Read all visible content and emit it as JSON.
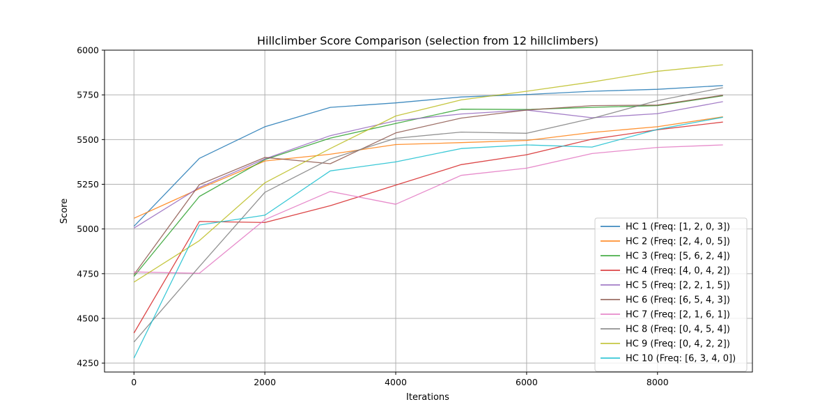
{
  "chart_data": {
    "type": "line",
    "title": "Hillclimber Score Comparison (selection from 12 hillclimbers)",
    "xlabel": "Iterations",
    "ylabel": "Score",
    "x": [
      0,
      1000,
      2000,
      3000,
      4000,
      5000,
      6000,
      7000,
      8000,
      9000
    ],
    "xlim": [
      -450,
      9450
    ],
    "ylim": [
      4200,
      6000
    ],
    "xticks": [
      0,
      2000,
      4000,
      6000,
      8000
    ],
    "yticks": [
      4250,
      4500,
      4750,
      5000,
      5250,
      5500,
      5750,
      6000
    ],
    "grid": true,
    "legend_position": "lower-right",
    "series": [
      {
        "name": "HC 1 (Freq: [1, 2, 0, 3])",
        "color": "#1f77b4",
        "values": [
          5015,
          5395,
          5572,
          5680,
          5705,
          5738,
          5752,
          5770,
          5781,
          5802
        ]
      },
      {
        "name": "HC 2 (Freq: [2, 4, 0, 5])",
        "color": "#ff7f0e",
        "values": [
          5060,
          5225,
          5380,
          5418,
          5472,
          5483,
          5495,
          5540,
          5572,
          5627
        ]
      },
      {
        "name": "HC 3 (Freq: [5, 6, 2, 4])",
        "color": "#2ca02c",
        "values": [
          4735,
          5182,
          5388,
          5508,
          5590,
          5670,
          5668,
          5680,
          5690,
          5745
        ]
      },
      {
        "name": "HC 4 (Freq: [4, 0, 4, 2])",
        "color": "#d62728",
        "values": [
          4418,
          5042,
          5036,
          5130,
          5245,
          5360,
          5415,
          5502,
          5555,
          5598
        ]
      },
      {
        "name": "HC 5 (Freq: [2, 2, 1, 5])",
        "color": "#9467bd",
        "values": [
          5005,
          5232,
          5392,
          5522,
          5605,
          5643,
          5665,
          5622,
          5645,
          5712
        ]
      },
      {
        "name": "HC 6 (Freq: [6, 5, 4, 3])",
        "color": "#8c564b",
        "values": [
          4745,
          5248,
          5400,
          5365,
          5537,
          5620,
          5665,
          5690,
          5693,
          5748
        ]
      },
      {
        "name": "HC 7 (Freq: [2, 1, 6, 1])",
        "color": "#e377c2",
        "values": [
          4760,
          4752,
          5052,
          5210,
          5138,
          5300,
          5340,
          5422,
          5456,
          5470
        ]
      },
      {
        "name": "HC 8 (Freq: [0, 4, 5, 4])",
        "color": "#7f7f7f",
        "values": [
          4368,
          4790,
          5205,
          5392,
          5507,
          5542,
          5535,
          5618,
          5718,
          5790
        ]
      },
      {
        "name": "HC 9 (Freq: [0, 4, 2, 2])",
        "color": "#bcbd22",
        "values": [
          4703,
          4935,
          5258,
          5450,
          5632,
          5722,
          5770,
          5822,
          5882,
          5918
        ]
      },
      {
        "name": "HC 10 (Freq: [6, 3, 4, 0])",
        "color": "#17becf",
        "values": [
          4278,
          5022,
          5077,
          5325,
          5375,
          5450,
          5470,
          5458,
          5557,
          5625
        ]
      }
    ]
  }
}
